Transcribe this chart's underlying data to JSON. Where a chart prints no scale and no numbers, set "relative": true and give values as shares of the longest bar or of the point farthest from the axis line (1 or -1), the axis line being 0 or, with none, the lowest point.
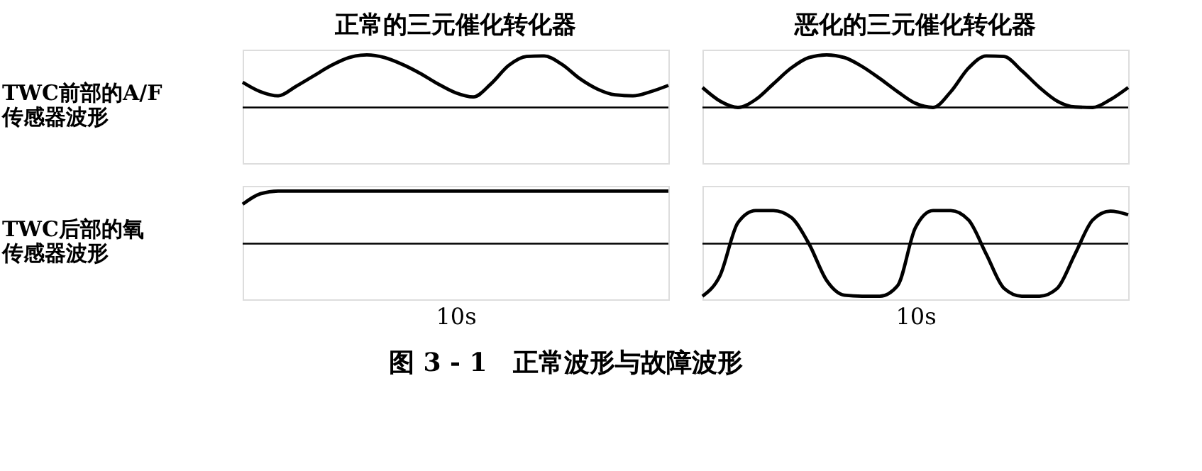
{
  "chart_data": [
    {
      "type": "line",
      "title": "正常的三元催化转化器",
      "ylabel": "TWC前部的A/F传感器波形",
      "relative": true,
      "tick_labels": false,
      "categories": [
        null,
        null,
        null,
        null,
        null,
        null,
        null,
        null,
        null,
        null,
        null,
        null,
        null,
        null,
        null,
        null,
        null,
        null,
        null,
        null,
        null,
        null,
        null,
        null,
        null
      ],
      "series": [
        {
          "color": "#000000",
          "values": [
            0.48,
            0.3,
            0.22,
            0.4,
            0.6,
            0.8,
            0.95,
            1.0,
            0.95,
            0.82,
            0.65,
            0.45,
            0.28,
            0.2,
            0.45,
            0.8,
            0.97,
            0.98,
            0.82,
            0.55,
            0.35,
            0.24,
            0.22,
            0.3,
            0.42
          ]
        }
      ],
      "ref_lines": [
        {
          "axis": "y",
          "value": 0
        }
      ]
    },
    {
      "type": "line",
      "title": "恶化的三元催化转化器",
      "relative": true,
      "tick_labels": false,
      "categories": [
        null,
        null,
        null,
        null,
        null,
        null,
        null,
        null,
        null,
        null,
        null,
        null,
        null,
        null,
        null,
        null,
        null,
        null,
        null,
        null,
        null,
        null,
        null,
        null,
        null
      ],
      "series": [
        {
          "color": "#000000",
          "values": [
            0.38,
            0.12,
            0,
            0.15,
            0.45,
            0.75,
            0.95,
            1.0,
            0.95,
            0.78,
            0.55,
            0.3,
            0.08,
            0,
            0.3,
            0.75,
            0.98,
            0.97,
            0.7,
            0.38,
            0.12,
            0.01,
            0,
            0.15,
            0.38
          ]
        }
      ],
      "ref_lines": [
        {
          "axis": "y",
          "value": 0
        }
      ]
    },
    {
      "type": "line",
      "ylabel": "TWC后部的氧传感器波形",
      "xlabel": "10s",
      "relative": true,
      "tick_labels": false,
      "categories": [
        null,
        null,
        null,
        null,
        null,
        null,
        null,
        null,
        null,
        null,
        null,
        null,
        null,
        null,
        null,
        null,
        null,
        null,
        null,
        null,
        null,
        null,
        null,
        null,
        null
      ],
      "series": [
        {
          "color": "#000000",
          "values": [
            0.75,
            0.95,
            1,
            1,
            1,
            1,
            1,
            1,
            1,
            1,
            1,
            1,
            1,
            1,
            1,
            1,
            1,
            1,
            1,
            1,
            1,
            1,
            1,
            1,
            1
          ]
        }
      ],
      "ref_lines": [
        {
          "axis": "y",
          "value": 0
        }
      ]
    },
    {
      "type": "line",
      "xlabel": "10s",
      "relative": true,
      "tick_labels": false,
      "annotations": [
        "图 3 - 1　正常波形与故障波形"
      ],
      "categories": [
        null,
        null,
        null,
        null,
        null,
        null,
        null,
        null,
        null,
        null,
        null,
        null,
        null,
        null,
        null,
        null,
        null,
        null,
        null,
        null,
        null,
        null,
        null,
        null,
        null
      ],
      "series": [
        {
          "color": "#000000",
          "values": [
            -1,
            -0.6,
            0.4,
            0.63,
            0.63,
            0.5,
            0,
            -0.7,
            -0.98,
            -1,
            -1,
            -0.8,
            0.3,
            0.63,
            0.63,
            0.45,
            -0.2,
            -0.85,
            -1,
            -1,
            -0.85,
            -0.2,
            0.45,
            0.62,
            0.55
          ]
        }
      ],
      "ref_lines": [
        {
          "axis": "y",
          "value": 0
        }
      ]
    }
  ]
}
